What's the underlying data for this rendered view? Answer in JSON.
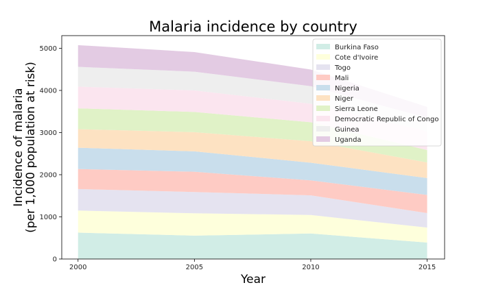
{
  "chart_data": {
    "type": "area",
    "title": "Malaria incidence by country",
    "xlabel": "Year",
    "ylabel_line1": "Incidence of malaria",
    "ylabel_line2": "(per 1,000 population at risk)",
    "x": [
      2000,
      2005,
      2010,
      2015
    ],
    "xlim": [
      1999.3,
      2015.75
    ],
    "ylim": [
      0,
      5300
    ],
    "xticks": [
      2000,
      2005,
      2010,
      2015
    ],
    "yticks": [
      0,
      1000,
      2000,
      3000,
      4000,
      5000
    ],
    "stacked": true,
    "grid": false,
    "legend_position": "upper-right",
    "series": [
      {
        "name": "Burkina Faso",
        "color": "#d1ede6",
        "values": [
          625,
          555,
          605,
          390
        ]
      },
      {
        "name": "Cote d'Ivoire",
        "color": "#feffdc",
        "values": [
          525,
          530,
          440,
          355
        ]
      },
      {
        "name": "Togo",
        "color": "#e5e3f0",
        "values": [
          510,
          505,
          465,
          345
        ]
      },
      {
        "name": "Mali",
        "color": "#fecbc4",
        "values": [
          475,
          480,
          355,
          430
        ]
      },
      {
        "name": "Nigeria",
        "color": "#c9deec",
        "values": [
          505,
          485,
          420,
          400
        ]
      },
      {
        "name": "Niger",
        "color": "#fde2c2",
        "values": [
          440,
          455,
          510,
          370
        ]
      },
      {
        "name": "Sierra Leone",
        "color": "#e0f2c7",
        "values": [
          495,
          480,
          450,
          295
        ]
      },
      {
        "name": "Democratic Republic of Congo",
        "color": "#fbe5ef",
        "values": [
          515,
          510,
          440,
          445
        ]
      },
      {
        "name": "Guinea",
        "color": "#eeeeee",
        "values": [
          470,
          445,
          415,
          320
        ]
      },
      {
        "name": "Uganda",
        "color": "#e3cbe3",
        "values": [
          515,
          465,
          395,
          260
        ]
      }
    ]
  }
}
